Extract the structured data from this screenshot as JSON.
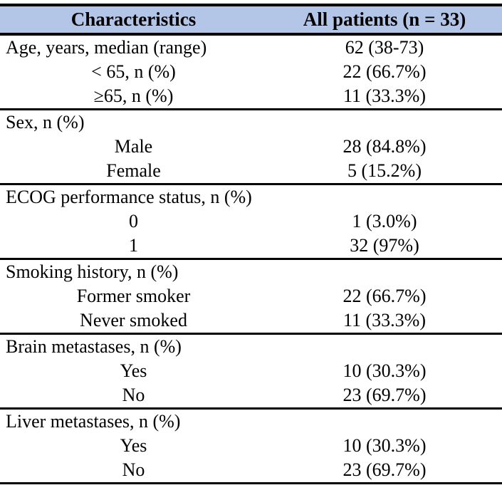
{
  "theme": {
    "header_bg": "#b4c6e7",
    "border_color": "#000000",
    "text_color": "#000000"
  },
  "table": {
    "columns": [
      "Characteristics",
      "All patients (n = 33)"
    ],
    "sections": [
      {
        "name": "age",
        "rows": [
          {
            "label": "Age, years, median (range)",
            "value": "62 (38-73)"
          },
          {
            "label": "< 65, n (%)",
            "value": "22 (66.7%)"
          },
          {
            "label": "≥65, n (%)",
            "value": "11 (33.3%)"
          }
        ]
      },
      {
        "name": "sex",
        "rows": [
          {
            "label": "Sex, n (%)",
            "value": ""
          },
          {
            "label": "Male",
            "value": "28 (84.8%)"
          },
          {
            "label": "Female",
            "value": "5 (15.2%)"
          }
        ]
      },
      {
        "name": "ecog",
        "rows": [
          {
            "label": "ECOG performance status, n (%)",
            "value": ""
          },
          {
            "label": "0",
            "value": "1 (3.0%)"
          },
          {
            "label": "1",
            "value": "32 (97%)"
          }
        ]
      },
      {
        "name": "smoking",
        "rows": [
          {
            "label": "Smoking history, n (%)",
            "value": ""
          },
          {
            "label": "Former smoker",
            "value": "22 (66.7%)"
          },
          {
            "label": "Never smoked",
            "value": "11 (33.3%)"
          }
        ]
      },
      {
        "name": "brain-metastases",
        "rows": [
          {
            "label": "Brain metastases, n (%)",
            "value": ""
          },
          {
            "label": "Yes",
            "value": "10 (30.3%)"
          },
          {
            "label": "No",
            "value": "23 (69.7%)"
          }
        ]
      },
      {
        "name": "liver-metastases",
        "rows": [
          {
            "label": "Liver metastases, n (%)",
            "value": ""
          },
          {
            "label": "Yes",
            "value": "10 (30.3%)"
          },
          {
            "label": "No",
            "value": "23 (69.7%)"
          }
        ]
      }
    ]
  }
}
